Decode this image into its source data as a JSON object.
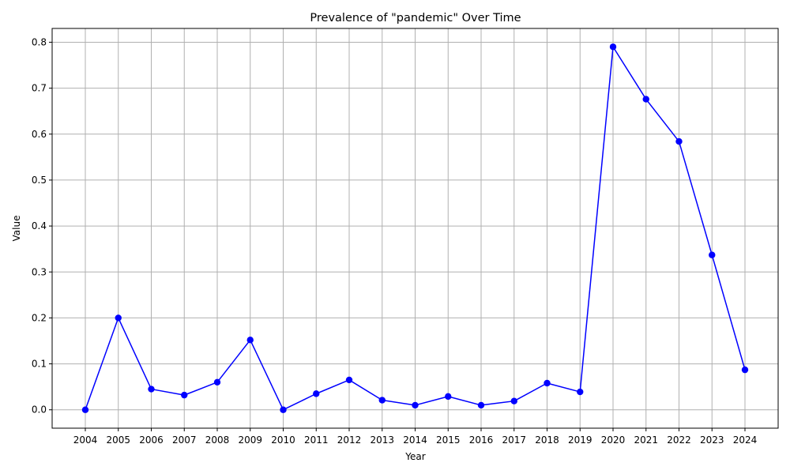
{
  "chart_data": {
    "type": "line",
    "title": "Prevalence of \"pandemic\" Over Time",
    "xlabel": "Year",
    "ylabel": "Value",
    "categories": [
      "2004",
      "2005",
      "2006",
      "2007",
      "2008",
      "2009",
      "2010",
      "2011",
      "2012",
      "2013",
      "2014",
      "2015",
      "2016",
      "2017",
      "2018",
      "2019",
      "2020",
      "2021",
      "2022",
      "2023",
      "2024"
    ],
    "series": [
      {
        "values": [
          0.0,
          0.2,
          0.045,
          0.032,
          0.06,
          0.152,
          0.0,
          0.035,
          0.065,
          0.021,
          0.01,
          0.029,
          0.01,
          0.019,
          0.058,
          0.039,
          0.79,
          0.676,
          0.584,
          0.337,
          0.087
        ],
        "color": "#0000ff",
        "marker": "circle"
      }
    ],
    "ylim": [
      -0.04,
      0.83
    ],
    "yticks": [
      0.0,
      0.1,
      0.2,
      0.3,
      0.4,
      0.5,
      0.6,
      0.7,
      0.8
    ],
    "ytick_labels": [
      "0.0",
      "0.1",
      "0.2",
      "0.3",
      "0.4",
      "0.5",
      "0.6",
      "0.7",
      "0.8"
    ],
    "grid": true,
    "grid_color": "#b0b0b0",
    "legend": false
  }
}
